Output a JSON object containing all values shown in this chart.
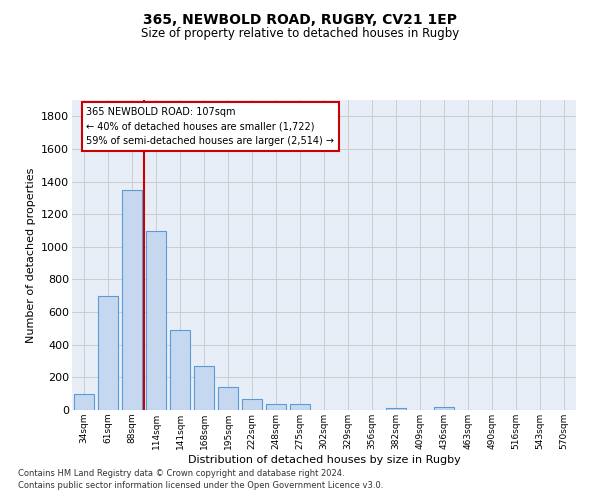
{
  "title1": "365, NEWBOLD ROAD, RUGBY, CV21 1EP",
  "title2": "Size of property relative to detached houses in Rugby",
  "xlabel": "Distribution of detached houses by size in Rugby",
  "ylabel": "Number of detached properties",
  "categories": [
    "34sqm",
    "61sqm",
    "88sqm",
    "114sqm",
    "141sqm",
    "168sqm",
    "195sqm",
    "222sqm",
    "248sqm",
    "275sqm",
    "302sqm",
    "329sqm",
    "356sqm",
    "382sqm",
    "409sqm",
    "436sqm",
    "463sqm",
    "490sqm",
    "516sqm",
    "543sqm",
    "570sqm"
  ],
  "values": [
    100,
    700,
    1350,
    1100,
    490,
    270,
    140,
    70,
    35,
    35,
    0,
    0,
    0,
    15,
    0,
    20,
    0,
    0,
    0,
    0,
    0
  ],
  "bar_color": "#c5d8f0",
  "bar_edge_color": "#5b9bd5",
  "vline_color": "#cc0000",
  "vline_x_index": 2.5,
  "annotation_text_line1": "365 NEWBOLD ROAD: 107sqm",
  "annotation_text_line2": "← 40% of detached houses are smaller (1,722)",
  "annotation_text_line3": "59% of semi-detached houses are larger (2,514) →",
  "annotation_box_color": "#cc0000",
  "ylim": [
    0,
    1900
  ],
  "yticks": [
    0,
    200,
    400,
    600,
    800,
    1000,
    1200,
    1400,
    1600,
    1800
  ],
  "grid_color": "#cccccc",
  "bg_color": "#e8eef7",
  "footer1": "Contains HM Land Registry data © Crown copyright and database right 2024.",
  "footer2": "Contains public sector information licensed under the Open Government Licence v3.0."
}
